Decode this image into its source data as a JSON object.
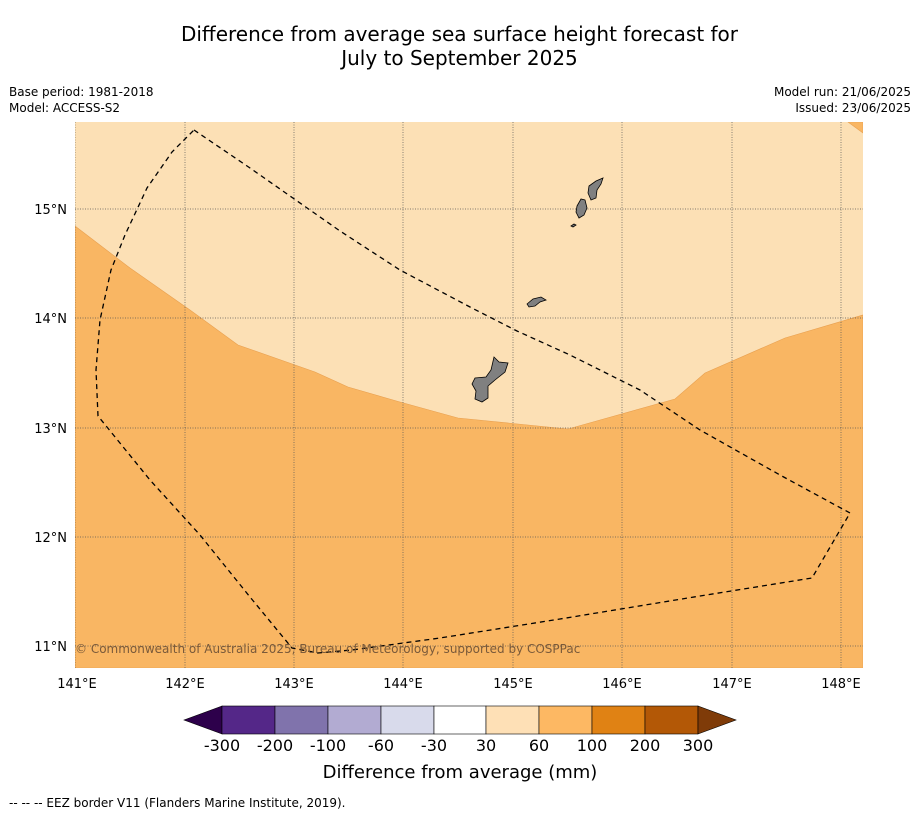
{
  "title_line1": "Difference from average sea surface height forecast for",
  "title_line2": "July to September 2025",
  "meta_left": {
    "base_period": "Base period: 1981-2018",
    "model": "Model: ACCESS-S2"
  },
  "meta_right": {
    "model_run": "Model run: 21/06/2025",
    "issued": "Issued: 23/06/2025"
  },
  "map": {
    "lon_ticks": [
      "141°E",
      "142°E",
      "143°E",
      "144°E",
      "145°E",
      "146°E",
      "147°E",
      "148°E"
    ],
    "lat_ticks": [
      "15°N",
      "14°N",
      "13°N",
      "12°N",
      "11°N"
    ],
    "copyright": "© Commonwealth of Australia 2025, Bureau of Meteorology, supported by COSPPac",
    "colors": {
      "band_30_60": "#fce0b5",
      "band_60_100": "#f9b663",
      "land": "#808080"
    }
  },
  "colorbar": {
    "labels": [
      "-300",
      "-200",
      "-100",
      "-60",
      "-30",
      "30",
      "60",
      "100",
      "200",
      "300"
    ],
    "colors": [
      "#2d004b",
      "#542788",
      "#8073ac",
      "#b2abd2",
      "#d8daeb",
      "#ffffff",
      "#fee0b6",
      "#fdb863",
      "#e08214",
      "#b35806",
      "#7f3b08"
    ],
    "title": "Difference from average (mm)"
  },
  "footnote": "--  --  -- EEZ border V11 (Flanders Marine Institute, 2019)."
}
